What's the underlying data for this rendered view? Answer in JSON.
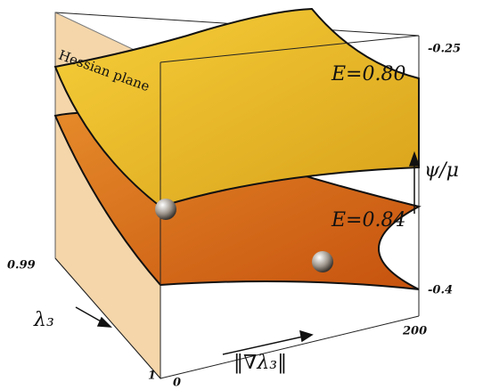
{
  "surface_labels": {
    "plane": "Hessian plane",
    "upper": "E=0.80",
    "lower": "E=0.84"
  },
  "axes": {
    "vertical": {
      "label": "ψ/μ",
      "top": -0.25,
      "bottom": -0.4
    },
    "depth": {
      "label": "λ₃",
      "back": 0.99,
      "front": 1
    },
    "horizontal": {
      "label": "‖∇λ₃‖",
      "start": 0,
      "end": 200
    }
  }
}
